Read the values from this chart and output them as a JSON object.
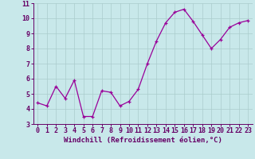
{
  "x": [
    0,
    1,
    2,
    3,
    4,
    5,
    6,
    7,
    8,
    9,
    10,
    11,
    12,
    13,
    14,
    15,
    16,
    17,
    18,
    19,
    20,
    21,
    22,
    23
  ],
  "y": [
    4.4,
    4.2,
    5.5,
    4.7,
    5.9,
    3.5,
    3.5,
    5.2,
    5.1,
    4.2,
    4.5,
    5.3,
    7.0,
    8.5,
    9.7,
    10.4,
    10.6,
    9.8,
    8.9,
    8.0,
    8.6,
    9.4,
    9.7,
    9.85
  ],
  "xlabel": "Windchill (Refroidissement éolien,°C)",
  "ylim": [
    3,
    11
  ],
  "yticks": [
    3,
    4,
    5,
    6,
    7,
    8,
    9,
    10,
    11
  ],
  "xticks": [
    0,
    1,
    2,
    3,
    4,
    5,
    6,
    7,
    8,
    9,
    10,
    11,
    12,
    13,
    14,
    15,
    16,
    17,
    18,
    19,
    20,
    21,
    22,
    23
  ],
  "xlim": [
    -0.5,
    23.5
  ],
  "line_color": "#990099",
  "marker": "+",
  "bg_color": "#c8e8ea",
  "grid_color": "#aacccc",
  "font_color": "#660066",
  "xlabel_fontsize": 6.5,
  "tick_fontsize": 6.0,
  "linewidth": 0.9,
  "markersize": 3.5,
  "markeredgewidth": 0.9
}
